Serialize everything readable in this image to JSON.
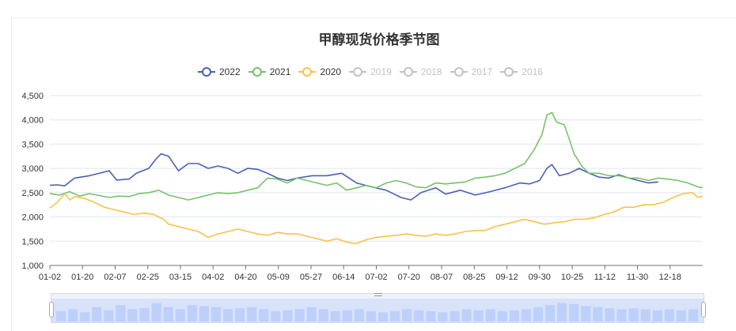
{
  "chart_data": {
    "type": "line",
    "title": "甲醇现货价格季节图",
    "xlabel": "",
    "ylabel": "",
    "ylim": [
      1000,
      4500
    ],
    "yticks": [
      "1,000",
      "1,500",
      "2,000",
      "2,500",
      "3,000",
      "3,500",
      "4,000",
      "4,500"
    ],
    "x_ticks": [
      "01-02",
      "01-20",
      "02-07",
      "02-25",
      "03-15",
      "04-02",
      "04-20",
      "05-09",
      "05-27",
      "06-14",
      "07-02",
      "07-20",
      "08-07",
      "08-25",
      "09-12",
      "09-30",
      "10-25",
      "11-12",
      "11-30",
      "12-18"
    ],
    "grid": "horizontal",
    "legend_position": "top-center",
    "legend": [
      {
        "name": "2022",
        "color": "#4b60b5",
        "active": true
      },
      {
        "name": "2021",
        "color": "#76c26a",
        "active": true
      },
      {
        "name": "2020",
        "color": "#f7c24a",
        "active": true
      },
      {
        "name": "2019",
        "color": "#c2c2c2",
        "active": false
      },
      {
        "name": "2018",
        "color": "#c2c2c2",
        "active": false
      },
      {
        "name": "2017",
        "color": "#c2c2c2",
        "active": false
      },
      {
        "name": "2016",
        "color": "#c2c2c2",
        "active": false
      }
    ],
    "series": [
      {
        "name": "2022",
        "color": "#4b60b5",
        "points": [
          [
            0,
            2650
          ],
          [
            3,
            2660
          ],
          [
            6,
            2640
          ],
          [
            10,
            2800
          ],
          [
            16,
            2850
          ],
          [
            24,
            2950
          ],
          [
            27,
            2760
          ],
          [
            32,
            2780
          ],
          [
            35,
            2900
          ],
          [
            40,
            3000
          ],
          [
            43,
            3200
          ],
          [
            45,
            3300
          ],
          [
            48,
            3250
          ],
          [
            52,
            2950
          ],
          [
            56,
            3100
          ],
          [
            60,
            3100
          ],
          [
            64,
            3000
          ],
          [
            68,
            3050
          ],
          [
            72,
            3000
          ],
          [
            76,
            2900
          ],
          [
            80,
            3000
          ],
          [
            84,
            2980
          ],
          [
            88,
            2900
          ],
          [
            92,
            2800
          ],
          [
            96,
            2750
          ],
          [
            100,
            2800
          ],
          [
            106,
            2850
          ],
          [
            112,
            2850
          ],
          [
            118,
            2900
          ],
          [
            124,
            2700
          ],
          [
            130,
            2620
          ],
          [
            136,
            2550
          ],
          [
            142,
            2400
          ],
          [
            146,
            2350
          ],
          [
            150,
            2500
          ],
          [
            156,
            2600
          ],
          [
            160,
            2470
          ],
          [
            166,
            2550
          ],
          [
            172,
            2450
          ],
          [
            178,
            2520
          ],
          [
            184,
            2600
          ],
          [
            190,
            2700
          ],
          [
            194,
            2680
          ],
          [
            198,
            2750
          ],
          [
            201,
            3000
          ],
          [
            203,
            3080
          ],
          [
            206,
            2850
          ],
          [
            210,
            2900
          ],
          [
            214,
            3000
          ],
          [
            218,
            2900
          ],
          [
            222,
            2820
          ],
          [
            226,
            2800
          ],
          [
            230,
            2870
          ],
          [
            234,
            2800
          ],
          [
            238,
            2750
          ],
          [
            242,
            2700
          ],
          [
            246,
            2720
          ]
        ]
      },
      {
        "name": "2021",
        "color": "#76c26a",
        "points": [
          [
            0,
            2480
          ],
          [
            4,
            2450
          ],
          [
            8,
            2520
          ],
          [
            12,
            2430
          ],
          [
            16,
            2480
          ],
          [
            20,
            2440
          ],
          [
            24,
            2400
          ],
          [
            28,
            2430
          ],
          [
            32,
            2420
          ],
          [
            36,
            2480
          ],
          [
            40,
            2500
          ],
          [
            44,
            2550
          ],
          [
            48,
            2450
          ],
          [
            52,
            2400
          ],
          [
            56,
            2350
          ],
          [
            60,
            2400
          ],
          [
            64,
            2450
          ],
          [
            68,
            2500
          ],
          [
            72,
            2480
          ],
          [
            76,
            2500
          ],
          [
            80,
            2550
          ],
          [
            84,
            2600
          ],
          [
            88,
            2800
          ],
          [
            92,
            2780
          ],
          [
            96,
            2700
          ],
          [
            100,
            2800
          ],
          [
            104,
            2750
          ],
          [
            108,
            2700
          ],
          [
            112,
            2650
          ],
          [
            116,
            2700
          ],
          [
            120,
            2550
          ],
          [
            124,
            2600
          ],
          [
            128,
            2650
          ],
          [
            132,
            2600
          ],
          [
            136,
            2700
          ],
          [
            140,
            2750
          ],
          [
            144,
            2700
          ],
          [
            148,
            2620
          ],
          [
            152,
            2600
          ],
          [
            156,
            2700
          ],
          [
            160,
            2680
          ],
          [
            164,
            2700
          ],
          [
            168,
            2720
          ],
          [
            172,
            2800
          ],
          [
            176,
            2820
          ],
          [
            180,
            2850
          ],
          [
            184,
            2900
          ],
          [
            188,
            3000
          ],
          [
            192,
            3100
          ],
          [
            196,
            3400
          ],
          [
            199,
            3700
          ],
          [
            201,
            4100
          ],
          [
            203,
            4150
          ],
          [
            205,
            3950
          ],
          [
            208,
            3900
          ],
          [
            210,
            3600
          ],
          [
            212,
            3300
          ],
          [
            215,
            3050
          ],
          [
            218,
            2900
          ],
          [
            222,
            2900
          ],
          [
            226,
            2850
          ],
          [
            230,
            2850
          ],
          [
            234,
            2800
          ],
          [
            238,
            2800
          ],
          [
            242,
            2750
          ],
          [
            246,
            2800
          ],
          [
            250,
            2780
          ],
          [
            254,
            2750
          ],
          [
            258,
            2700
          ],
          [
            262,
            2620
          ],
          [
            264,
            2600
          ]
        ]
      },
      {
        "name": "2020",
        "color": "#f7c24a",
        "points": [
          [
            0,
            2180
          ],
          [
            3,
            2300
          ],
          [
            6,
            2480
          ],
          [
            8,
            2350
          ],
          [
            10,
            2420
          ],
          [
            14,
            2380
          ],
          [
            18,
            2300
          ],
          [
            22,
            2200
          ],
          [
            26,
            2150
          ],
          [
            30,
            2100
          ],
          [
            34,
            2050
          ],
          [
            38,
            2080
          ],
          [
            42,
            2050
          ],
          [
            46,
            1950
          ],
          [
            48,
            1850
          ],
          [
            52,
            1800
          ],
          [
            56,
            1750
          ],
          [
            60,
            1700
          ],
          [
            64,
            1580
          ],
          [
            68,
            1650
          ],
          [
            72,
            1700
          ],
          [
            76,
            1750
          ],
          [
            80,
            1700
          ],
          [
            84,
            1650
          ],
          [
            88,
            1620
          ],
          [
            92,
            1680
          ],
          [
            96,
            1650
          ],
          [
            100,
            1650
          ],
          [
            104,
            1600
          ],
          [
            108,
            1550
          ],
          [
            112,
            1500
          ],
          [
            116,
            1550
          ],
          [
            120,
            1480
          ],
          [
            124,
            1450
          ],
          [
            128,
            1530
          ],
          [
            132,
            1580
          ],
          [
            136,
            1600
          ],
          [
            140,
            1620
          ],
          [
            144,
            1650
          ],
          [
            148,
            1620
          ],
          [
            152,
            1600
          ],
          [
            156,
            1650
          ],
          [
            160,
            1620
          ],
          [
            164,
            1650
          ],
          [
            168,
            1700
          ],
          [
            172,
            1720
          ],
          [
            176,
            1720
          ],
          [
            180,
            1800
          ],
          [
            184,
            1850
          ],
          [
            188,
            1900
          ],
          [
            192,
            1950
          ],
          [
            196,
            1900
          ],
          [
            200,
            1850
          ],
          [
            204,
            1880
          ],
          [
            208,
            1900
          ],
          [
            212,
            1950
          ],
          [
            216,
            1950
          ],
          [
            220,
            1980
          ],
          [
            224,
            2050
          ],
          [
            228,
            2100
          ],
          [
            232,
            2200
          ],
          [
            236,
            2200
          ],
          [
            240,
            2250
          ],
          [
            244,
            2250
          ],
          [
            248,
            2300
          ],
          [
            252,
            2400
          ],
          [
            256,
            2480
          ],
          [
            260,
            2500
          ],
          [
            262,
            2400
          ],
          [
            264,
            2430
          ]
        ]
      }
    ],
    "x_range": [
      0,
      264
    ]
  },
  "zoom_bars": [
    0.5,
    0.6,
    0.45,
    0.7,
    0.55,
    0.8,
    0.6,
    0.65,
    0.9,
    0.7,
    0.6,
    0.8,
    0.75,
    0.7,
    0.6,
    0.65,
    0.7,
    0.6,
    0.5,
    0.55,
    0.6,
    0.7,
    0.6,
    0.5,
    0.55,
    0.6,
    0.5,
    0.45,
    0.5,
    0.6,
    0.55,
    0.5,
    0.45,
    0.5,
    0.6,
    0.55,
    0.6,
    0.5,
    0.55,
    0.6,
    0.7,
    0.8,
    0.9,
    0.85,
    0.75,
    0.7,
    0.65,
    0.6,
    0.65,
    0.6,
    0.55,
    0.6,
    0.55,
    0.6
  ]
}
